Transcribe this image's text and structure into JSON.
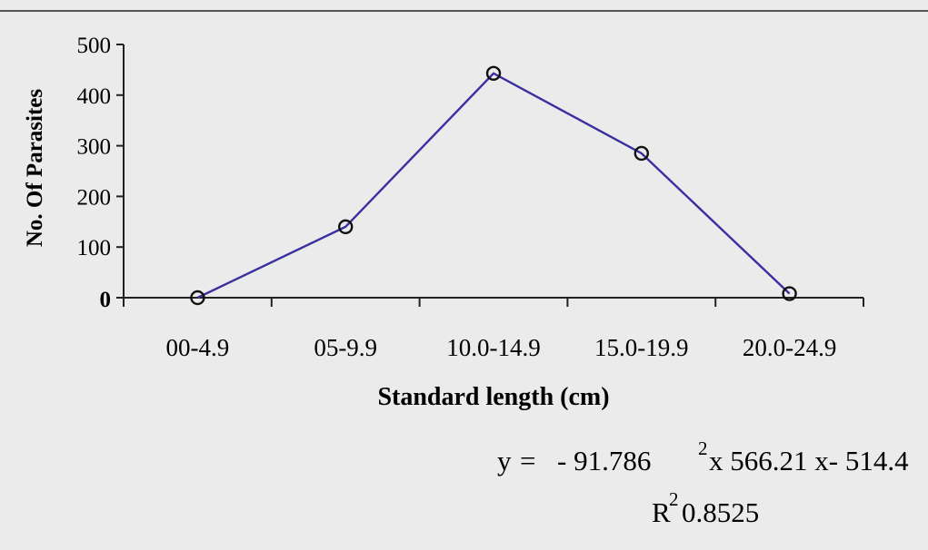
{
  "chart_data": {
    "type": "line",
    "categories": [
      "00-4.9",
      "05-9.9",
      "10.0-14.9",
      "15.0-19.9",
      "20.0-24.9"
    ],
    "series": [
      {
        "values": [
          0,
          140,
          443,
          285,
          8
        ],
        "color": "#3a2fa0"
      }
    ],
    "ylim": [
      0,
      500
    ],
    "yticks": [
      "0",
      "100",
      "200",
      "300",
      "400",
      "500"
    ],
    "xlabel": "Standard length (cm)",
    "ylabel": "No. Of Parasites",
    "marker": "open-circle",
    "grid": false,
    "trendline": {
      "eq_lhs": "y",
      "eq_eq": "=",
      "eq_coef": "- 91.786",
      "eq_sup": "2",
      "eq_mid": "x 566.21 x- 514.4",
      "r2_base": "R",
      "r2_sup": "2",
      "r2_value": "0.8525"
    }
  }
}
